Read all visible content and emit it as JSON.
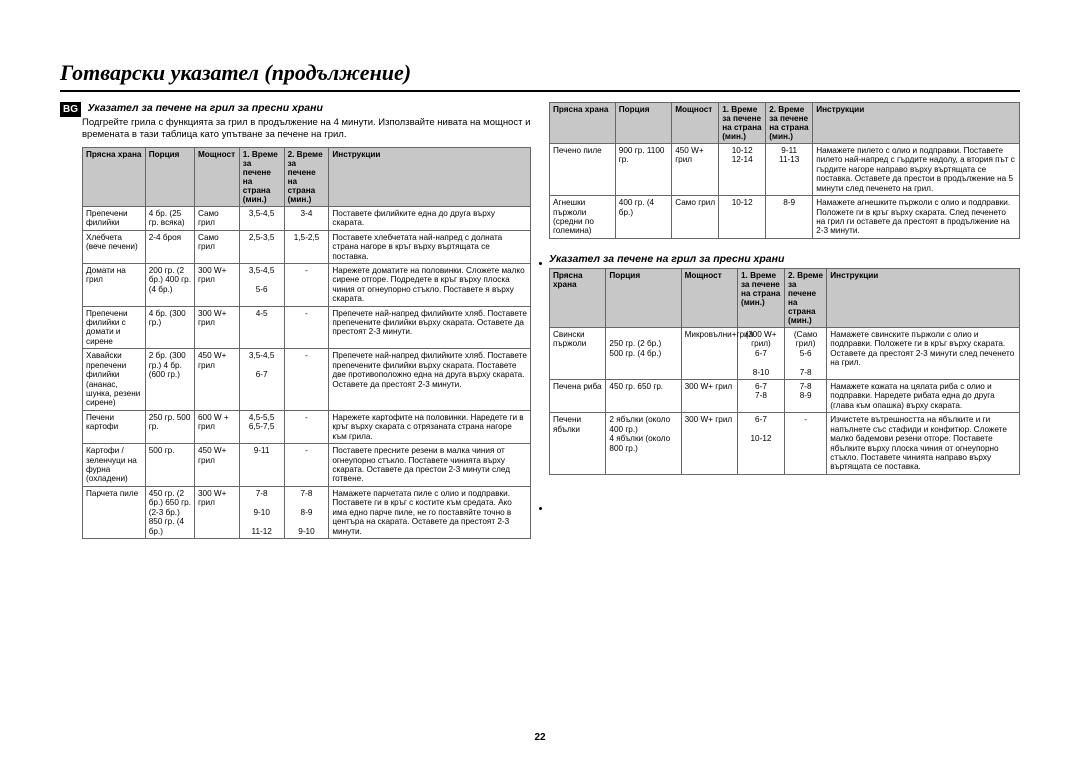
{
  "page_title": "Готварски указател (продължение)",
  "bg_label": "BG",
  "page_number": "22",
  "left": {
    "heading": "Указател за печене на грил за пресни храни",
    "intro": "Подгрейте грила с функцията за грил в продължение на 4 минути. Използвайте нивата на мощност и времената в тази таблица като упътване за печене на грил.",
    "headers": {
      "c1": "Прясна храна",
      "c2": "Порция",
      "c3": "Мощност",
      "c4": "1. Време за печене на страна (мин.)",
      "c5": "2. Време за печене на страна (мин.)",
      "c6": "Инструкции"
    },
    "rows": [
      {
        "c1": "Препечени филийки",
        "c2": "4 бр. (25 гр. всяка)",
        "c3": "Само грил",
        "c4": "3,5-4,5",
        "c5": "3-4",
        "c6": "Поставете филийките една до друга върху скарата."
      },
      {
        "c1": "Хлебчета (вече печени)",
        "c2": "2-4 броя",
        "c3": "Само грил",
        "c4": "2,5-3,5",
        "c5": "1,5-2,5",
        "c6": "Поставете хлебчетата най-напред с долната страна нагоре в кръг върху въртящата се поставка."
      },
      {
        "c1": "Домати на грил",
        "c2": "200 гр. (2 бр.) 400 гр. (4 бр.)",
        "c3": "300 W+ грил",
        "c4": "3,5-4,5\n\n5-6",
        "c5": "-",
        "c6": "Нарежете доматите на половинки. Сложете малко сирене отгоре. Подредете в кръг върху плоска чиния от огнеупорно стъкло. Поставете я върху скарата."
      },
      {
        "c1": "Препечени филийки с домати и сирене",
        "c2": "4 бр. (300 гр.)",
        "c3": "300 W+ грил",
        "c4": "4-5",
        "c5": "-",
        "c6": "Препечете най-напред филийките хляб. Поставете препечените филийки върху скарата. Оставете да престоят 2-3 минути."
      },
      {
        "c1": "Хавайски препечени филийки (ананас, шунка, резени сирене)",
        "c2": "2 бр. (300 гр.) 4 бр. (600 гр.)",
        "c3": "450 W+ грил",
        "c4": "3,5-4,5\n\n6-7",
        "c5": "-",
        "c6": "Препечете най-напред филийките хляб. Поставете препечените филийки върху скарата. Поставете две противоположно една на друга върху скарата. Оставете да престоят 2-3 минути."
      },
      {
        "c1": "Печени картофи",
        "c2": "250 гр. 500 гр.",
        "c3": "600 W + грил",
        "c4": "4,5-5,5\n6,5-7,5",
        "c5": "-",
        "c6": "Нарежете картофите на половинки. Наредете ги в кръг върху скарата с отрязаната страна нагоре към грила."
      },
      {
        "c1": "Картофи / зеленчуци на фурна (охладени)",
        "c2": "500 гр.",
        "c3": "450 W+ грил",
        "c4": "9-11",
        "c5": "-",
        "c6": "Поставете пресните резени в малка чиния от огнеупорно стъкло. Поставете чинията върху скарата. Оставете да престои 2-3 минути след готвене."
      },
      {
        "c1": "Парчета пиле",
        "c2": "450 гр. (2 бр.) 650 гр. (2-3 бр.) 850 гр. (4 бр.)",
        "c3": "300 W+ грил",
        "c4": "7-8\n\n9-10\n\n11-12",
        "c5": "7-8\n\n8-9\n\n9-10",
        "c6": "Намажете парчетата пиле с олио и подправки. Поставете ги в кръг с костите към средата. Ако има едно парче пиле, не го поставяйте точно в центъра на скарата. Оставете да престоят 2-3 минути."
      }
    ]
  },
  "rightTop": {
    "headers": {
      "c1": "Прясна храна",
      "c2": "Порция",
      "c3": "Мощност",
      "c4": "1. Време за печене на страна (мин.)",
      "c5": "2. Време за печене на страна (мин.)",
      "c6": "Инструкции"
    },
    "rows": [
      {
        "c1": "Печено пиле",
        "c2": "900 гр. 1100 гр.",
        "c3": "450 W+ грил",
        "c4": "10-12\n12-14",
        "c5": "9-11\n11-13",
        "c6": "Намажете пилето с олио и подправки. Поставете пилето най-напред с гърдите надолу, а втория път с гърдите нагоре направо върху въртящата се поставка. Оставете да престои в продължение на 5 минути след печенето на грил."
      },
      {
        "c1": "Агнешки пържоли (средни по големина)",
        "c2": "400 гр. (4 бр.)",
        "c3": "Само грил",
        "c4": "10-12",
        "c5": "8-9",
        "c6": "Намажете агнешките пържоли с олио и подправки. Положете ги в кръг върху скарата. След печенето на грил ги оставете да престоят в продължение на 2-3 минути."
      }
    ]
  },
  "rightBottom": {
    "heading": "Указател за печене на грил за пресни храни",
    "headers": {
      "c1": "Прясна храна",
      "c2": "Порция",
      "c3": "Мощност",
      "c4": "1. Време за печене на страна (мин.)",
      "c5": "2. Време за печене на страна (мин.)",
      "c6": "Инструкции"
    },
    "rows": [
      {
        "c1": "Свински пържоли",
        "c2": "\n250 гр. (2 бр.)\n500 гр. (4 бр.)",
        "c3": "Микровълни+грил",
        "c4": "(300 W+ грил)\n6-7\n\n8-10",
        "c5": "(Само грил)\n5-6\n\n7-8",
        "c6": "Намажете свинските пържоли с олио и подправки. Положете ги в кръг върху скарата. Оставете да престоят 2-3 минути след печенето на грил."
      },
      {
        "c1": "Печена риба",
        "c2": "450 гр. 650 гр.",
        "c3": "300 W+ грил",
        "c4": "6-7\n7-8",
        "c5": "7-8\n8-9",
        "c6": "Намажете кожата на цялата риба с олио и подправки. Наредете рибата една до друга (глава към опашка) върху скарата."
      },
      {
        "c1": "Печени ябълки",
        "c2": "2 ябълки (около 400 гр.)\n4 ябълки (около 800 гр.)",
        "c3": "300 W+ грил",
        "c4": "6-7\n\n10-12",
        "c5": "-",
        "c6": "Изчистете вътрешността на ябълките и ги напълнете със стафиди и конфитюр. Сложете малко бадемови резени отгоре. Поставете ябълките върху плоска чиния от огнеупорно стъкло. Поставете чинията направо върху въртящата се поставка."
      }
    ]
  }
}
